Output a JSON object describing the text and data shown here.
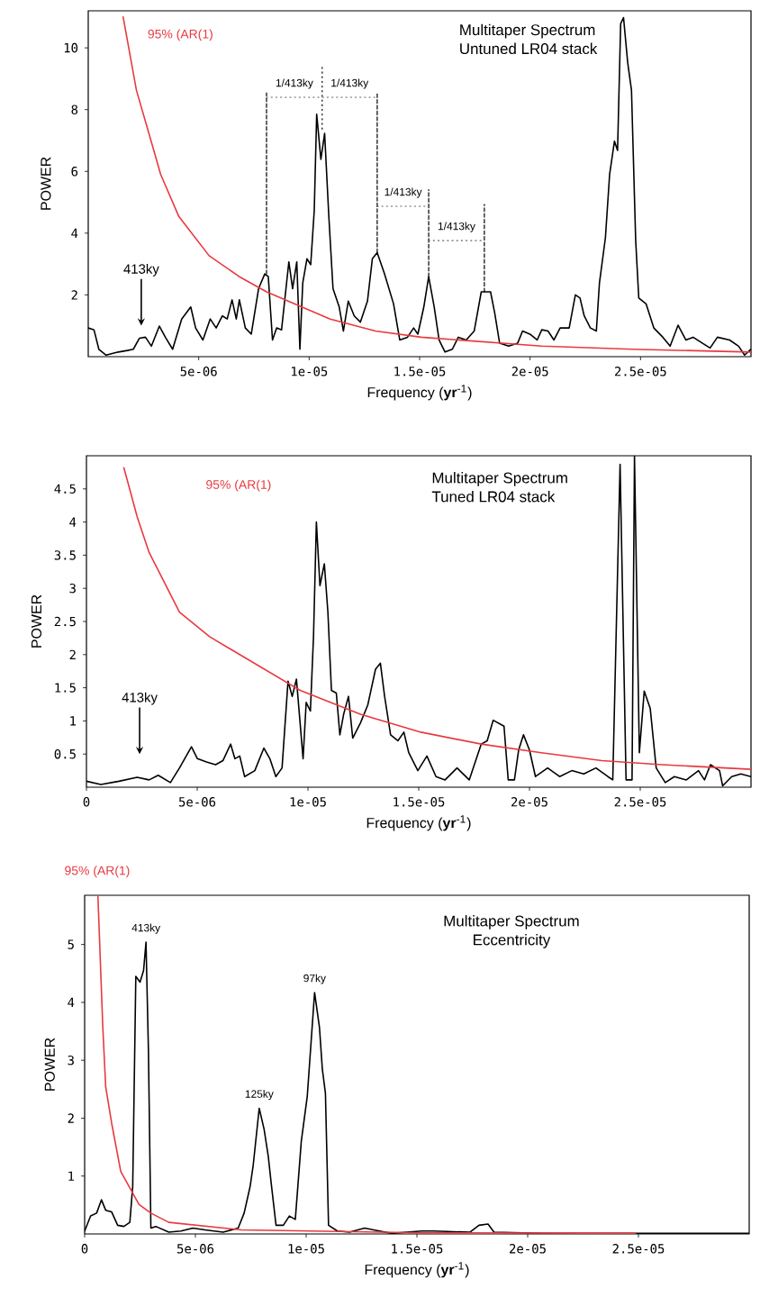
{
  "chart_data": [
    {
      "type": "line",
      "title": "Multitaper Spectrum",
      "subtitle": "Untuned LR04 stack",
      "xlabel": "Frequency (**yr**$^{-1}$)",
      "ylabel": "POWER",
      "xlim": [
        0,
        3e-05
      ],
      "ylim": [
        0,
        11.2
      ],
      "xticks": [
        5e-06,
        1e-05,
        1.5e-05,
        2e-05,
        2.5e-05
      ],
      "yticks": [
        2,
        4,
        6,
        8,
        10
      ],
      "series": [
        {
          "color": "#000000",
          "x": [
            0,
            2.6e-07,
            4.8e-07,
            8.1e-07,
            1.36e-06,
            1.77e-06,
            2.04e-06,
            2.32e-06,
            2.59e-06,
            2.86e-06,
            3.22e-06,
            3.49e-06,
            3.82e-06,
            4.23e-06,
            4.64e-06,
            4.86e-06,
            5.19e-06,
            5.52e-06,
            5.79e-06,
            6.07e-06,
            6.29e-06,
            6.51e-06,
            6.7e-06,
            6.84e-06,
            7.11e-06,
            7.38e-06,
            7.71e-06,
            7.99e-06,
            8.15e-06,
            8.34e-06,
            8.53e-06,
            8.75e-06,
            9.08e-06,
            9.25e-06,
            9.44e-06,
            9.58e-06,
            9.71e-06,
            9.9e-06,
            1.007e-05,
            1.023e-05,
            1.034e-05,
            1.053e-05,
            1.07e-05,
            1.089e-05,
            1.108e-05,
            1.136e-05,
            1.155e-05,
            1.177e-05,
            1.204e-05,
            1.232e-05,
            1.264e-05,
            1.286e-05,
            1.308e-05,
            1.341e-05,
            1.382e-05,
            1.41e-05,
            1.445e-05,
            1.473e-05,
            1.492e-05,
            1.519e-05,
            1.541e-05,
            1.566e-05,
            1.588e-05,
            1.615e-05,
            1.648e-05,
            1.675e-05,
            1.711e-05,
            1.747e-05,
            1.779e-05,
            1.821e-05,
            1.84e-05,
            1.862e-05,
            1.903e-05,
            1.944e-05,
            1.966e-05,
            1.999e-05,
            2.032e-05,
            2.053e-05,
            2.081e-05,
            2.108e-05,
            2.136e-05,
            2.177e-05,
            2.205e-05,
            2.226e-05,
            2.245e-05,
            2.273e-05,
            2.3e-05,
            2.314e-05,
            2.341e-05,
            2.36e-05,
            2.382e-05,
            2.396e-05,
            2.41e-05,
            2.423e-05,
            2.442e-05,
            2.459e-05,
            2.478e-05,
            2.492e-05,
            2.525e-05,
            2.56e-05,
            2.601e-05,
            2.634e-05,
            2.67e-05,
            2.705e-05,
            2.738e-05,
            2.779e-05,
            2.815e-05,
            2.848e-05,
            2.903e-05,
            2.944e-05,
            2.971e-05,
            2.999e-05
          ],
          "values": [
            0.93,
            0.87,
            0.24,
            0.05,
            0.15,
            0.2,
            0.24,
            0.6,
            0.63,
            0.34,
            0.99,
            0.63,
            0.24,
            1.22,
            1.61,
            0.93,
            0.54,
            1.22,
            0.93,
            1.32,
            1.22,
            1.84,
            1.22,
            1.84,
            0.93,
            0.73,
            2.2,
            2.68,
            2.59,
            0.54,
            0.93,
            0.87,
            3.07,
            2.2,
            3.07,
            0.24,
            2.39,
            3.17,
            2.98,
            4.73,
            7.85,
            6.39,
            7.23,
            4.54,
            2.2,
            1.61,
            0.83,
            1.8,
            1.32,
            1.12,
            1.8,
            3.17,
            3.37,
            2.68,
            1.71,
            0.54,
            0.63,
            0.93,
            0.73,
            1.61,
            2.59,
            1.61,
            0.54,
            0.15,
            0.24,
            0.63,
            0.54,
            0.83,
            2.1,
            2.1,
            1.41,
            0.44,
            0.34,
            0.44,
            0.83,
            0.73,
            0.54,
            0.87,
            0.83,
            0.54,
            0.93,
            0.93,
            2.0,
            1.9,
            1.32,
            0.93,
            0.83,
            2.39,
            3.85,
            5.9,
            6.98,
            6.68,
            10.78,
            10.98,
            9.51,
            8.63,
            3.76,
            1.9,
            1.71,
            0.93,
            0.63,
            0.34,
            1.02,
            0.54,
            0.63,
            0.44,
            0.28,
            0.63,
            0.54,
            0.34,
            0.05,
            0.24
          ]
        },
        {
          "name": "95% (AR(1)",
          "color": "#e8393f",
          "x": [
            1.58e-06,
            2.18e-06,
            2.73e-06,
            3.28e-06,
            4.1e-06,
            5.47e-06,
            6.84e-06,
            8.07e-06,
            1.095e-05,
            1.3e-05,
            1.507e-05,
            2.053e-05,
            2.464e-05,
            3e-05
          ],
          "values": [
            11.0,
            8.63,
            7.27,
            5.9,
            4.54,
            3.27,
            2.59,
            2.1,
            1.22,
            0.83,
            0.63,
            0.34,
            0.24,
            0.15
          ]
        },
        {
          "color": "#000000",
          "line_style": "dashed",
          "x": [
            8.07e-06,
            8.07e-06
          ],
          "values": [
            2.68,
            8.54
          ]
        },
        {
          "color": "#000000",
          "line_style": "dotted",
          "x": [
            1.059e-05,
            1.059e-05
          ],
          "values": [
            7.37,
            9.45
          ]
        },
        {
          "color": "#000000",
          "line_style": "dashed",
          "x": [
            1.308e-05,
            1.308e-05
          ],
          "values": [
            3.37,
            8.54
          ]
        },
        {
          "color": "#000000",
          "line_style": "dashed",
          "x": [
            1.541e-05,
            1.541e-05
          ],
          "values": [
            2.59,
            5.41
          ]
        },
        {
          "color": "#000000",
          "line_style": "dashed",
          "x": [
            1.793e-05,
            1.793e-05
          ],
          "values": [
            2.1,
            4.93
          ]
        },
        {
          "color": "#666666",
          "line_style": "dotted",
          "x": [
            8.07e-06,
            1.308e-05
          ],
          "values": [
            8.4,
            8.4
          ]
        },
        {
          "color": "#666666",
          "line_style": "dotted",
          "x": [
            1.308e-05,
            1.541e-05
          ],
          "values": [
            4.87,
            4.87
          ]
        },
        {
          "color": "#666666",
          "line_style": "dotted",
          "x": [
            1.541e-05,
            1.793e-05
          ],
          "values": [
            3.76,
            3.76
          ]
        }
      ],
      "annotations": [
        "413ky",
        {
          "text": "1/413ky",
          "x": 9.33e-06,
          "y": 8.4
        },
        {
          "text": "1/413ky",
          "x": 1.183e-05,
          "y": 8.4
        },
        {
          "text": "1/413ky",
          "x": 1.425e-05,
          "y": 4.87
        },
        {
          "text": "1/413ky",
          "x": 1.667e-05,
          "y": 3.76
        }
      ]
    },
    {
      "type": "line",
      "title": "Multitaper Spectrum",
      "subtitle": "Tuned LR04 stack",
      "xlabel": "Frequency (**yr**$^{-1}$)",
      "ylabel": "POWER",
      "xlim": [
        0,
        3e-05
      ],
      "ylim": [
        0,
        5
      ],
      "xticks": [
        0,
        5e-06,
        1e-05,
        1.5e-05,
        2e-05,
        2.5e-05
      ],
      "yticks": [
        0.5,
        1,
        1.5,
        2,
        2.5,
        3,
        3.5,
        4,
        4.5
      ],
      "series": [
        {
          "color": "#000000",
          "x": [
            0,
            6.5e-07,
            1.47e-06,
            2.29e-06,
            2.83e-06,
            3.24e-06,
            3.79e-06,
            4.2e-06,
            4.74e-06,
            5.01e-06,
            5.42e-06,
            5.83e-06,
            6.16e-06,
            6.51e-06,
            6.7e-06,
            6.92e-06,
            7.14e-06,
            7.6e-06,
            8.01e-06,
            8.28e-06,
            8.55e-06,
            8.83e-06,
            9.1e-06,
            9.29e-06,
            9.48e-06,
            9.78e-06,
            9.92e-06,
            1.011e-05,
            1.025e-05,
            1.038e-05,
            1.054e-05,
            1.074e-05,
            1.09e-05,
            1.106e-05,
            1.128e-05,
            1.144e-05,
            1.161e-05,
            1.183e-05,
            1.202e-05,
            1.237e-05,
            1.27e-05,
            1.305e-05,
            1.327e-05,
            1.346e-05,
            1.373e-05,
            1.406e-05,
            1.433e-05,
            1.455e-05,
            1.496e-05,
            1.537e-05,
            1.578e-05,
            1.619e-05,
            1.673e-05,
            1.728e-05,
            1.782e-05,
            1.809e-05,
            1.836e-05,
            1.885e-05,
            1.904e-05,
            1.932e-05,
            1.951e-05,
            1.973e-05,
            2e-05,
            2.027e-05,
            2.082e-05,
            2.136e-05,
            2.191e-05,
            2.245e-05,
            2.3e-05,
            2.354e-05,
            2.376e-05,
            2.409e-05,
            2.436e-05,
            2.463e-05,
            2.474e-05,
            2.496e-05,
            2.518e-05,
            2.545e-05,
            2.572e-05,
            2.613e-05,
            2.654e-05,
            2.708e-05,
            2.763e-05,
            2.79e-05,
            2.817e-05,
            2.858e-05,
            2.872e-05,
            2.913e-05,
            2.954e-05,
            3e-05
          ],
          "values": [
            0.09,
            0.04,
            0.09,
            0.15,
            0.11,
            0.18,
            0.07,
            0.29,
            0.61,
            0.43,
            0.38,
            0.34,
            0.4,
            0.65,
            0.43,
            0.47,
            0.16,
            0.25,
            0.59,
            0.43,
            0.16,
            0.29,
            1.6,
            1.37,
            1.63,
            0.43,
            1.28,
            1.15,
            2.27,
            4.0,
            3.04,
            3.37,
            2.64,
            1.46,
            1.42,
            0.79,
            1.1,
            1.37,
            0.74,
            0.97,
            1.24,
            1.78,
            1.87,
            1.37,
            0.79,
            0.7,
            0.83,
            0.52,
            0.25,
            0.47,
            0.16,
            0.11,
            0.29,
            0.11,
            0.65,
            0.7,
            1.01,
            0.92,
            0.11,
            0.11,
            0.56,
            0.79,
            0.56,
            0.16,
            0.29,
            0.16,
            0.25,
            0.2,
            0.29,
            0.16,
            0.11,
            4.87,
            0.11,
            0.11,
            5.0,
            0.52,
            1.45,
            1.19,
            0.29,
            0.07,
            0.16,
            0.11,
            0.25,
            0.11,
            0.34,
            0.25,
            0.02,
            0.16,
            0.2,
            0.16
          ]
        },
        {
          "name": "95% (AR(1)",
          "color": "#e8393f",
          "x": [
            1.69e-06,
            2.29e-06,
            2.83e-06,
            4.2e-06,
            5.56e-06,
            6.92e-06,
            9.65e-06,
            1.237e-05,
            1.51e-05,
            1.782e-05,
            2.054e-05,
            2.327e-05,
            2.599e-05,
            3e-05
          ],
          "values": [
            4.82,
            4.08,
            3.54,
            2.64,
            2.27,
            2.0,
            1.46,
            1.1,
            0.83,
            0.65,
            0.52,
            0.4,
            0.34,
            0.27
          ]
        }
      ],
      "annotations": [
        "413ky"
      ]
    },
    {
      "type": "line",
      "title": "Multitaper Spectrum",
      "subtitle": "Eccentricity",
      "xlabel": "Frequency (**yr**$^{-1}$)",
      "ylabel": "POWER",
      "xlim": [
        0,
        3e-05
      ],
      "ylim": [
        0,
        5.85
      ],
      "xticks": [
        0,
        5e-06,
        1e-05,
        1.5e-05,
        2e-05,
        2.5e-05
      ],
      "yticks": [
        1,
        2,
        3,
        4,
        5
      ],
      "series": [
        {
          "color": "#000000",
          "x": [
            0,
            2.7e-07,
            5.4e-07,
            7.6e-07,
            9.5e-07,
            1.22e-06,
            1.49e-06,
            1.77e-06,
            2.04e-06,
            2.17e-06,
            2.31e-06,
            2.5e-06,
            2.66e-06,
            2.77e-06,
            2.88e-06,
            2.99e-06,
            3.21e-06,
            3.8e-06,
            4.35e-06,
            4.89e-06,
            5.43e-06,
            6.25e-06,
            6.93e-06,
            7.2e-06,
            7.47e-06,
            7.61e-06,
            7.88e-06,
            8.1e-06,
            8.29e-06,
            8.42e-06,
            8.64e-06,
            8.97e-06,
            9.24e-06,
            9.51e-06,
            9.78e-06,
            1.005e-05,
            1.038e-05,
            1.06e-05,
            1.073e-05,
            1.087e-05,
            1.101e-05,
            1.141e-05,
            1.196e-05,
            1.264e-05,
            1.304e-05,
            1.386e-05,
            1.522e-05,
            1.576e-05,
            1.739e-05,
            1.78e-05,
            1.821e-05,
            1.848e-05,
            2.065e-05,
            2.337e-05,
            2.609e-05,
            3e-05
          ],
          "values": [
            0.05,
            0.31,
            0.36,
            0.59,
            0.41,
            0.38,
            0.15,
            0.13,
            0.2,
            0.82,
            4.45,
            4.35,
            4.55,
            5.04,
            3.16,
            0.1,
            0.13,
            0.03,
            0.05,
            0.1,
            0.07,
            0.03,
            0.1,
            0.36,
            0.82,
            1.19,
            2.17,
            1.81,
            1.34,
            0.88,
            0.15,
            0.15,
            0.31,
            0.25,
            1.6,
            2.38,
            4.17,
            3.57,
            2.85,
            2.43,
            0.15,
            0.05,
            0.03,
            0.1,
            0.07,
            0.01,
            0.05,
            0.05,
            0.03,
            0.15,
            0.17,
            0.03,
            0.01,
            0.01,
            0.01,
            0.01
          ]
        },
        {
          "name": "95% (AR(1)",
          "color": "#e8393f",
          "x": [
            6e-07,
            8.2e-07,
            9.5e-07,
            1.22e-06,
            1.63e-06,
            2.45e-06,
            2.99e-06,
            3.8e-06,
            7.07e-06,
            1.522e-05,
            2.486e-05
          ],
          "values": [
            5.83,
            3.57,
            2.54,
            1.91,
            1.08,
            0.51,
            0.36,
            0.2,
            0.07,
            0.02,
            0.01
          ]
        }
      ],
      "annotations": [
        {
          "text": "413ky",
          "x": 2.77e-06,
          "y": 5.04
        },
        {
          "text": "125ky",
          "x": 7.88e-06,
          "y": 2.17
        },
        {
          "text": "97ky",
          "x": 1.038e-05,
          "y": 4.17
        }
      ]
    }
  ]
}
